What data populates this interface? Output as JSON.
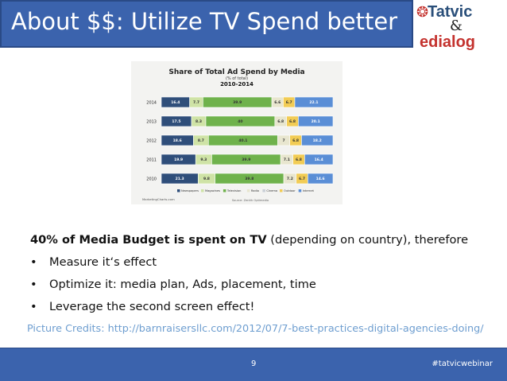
{
  "header": {
    "title": "About $$: Utilize TV Spend better"
  },
  "logo": {
    "line1": "Tatvic",
    "amp": "&",
    "line2": "edialog"
  },
  "chart_data": {
    "type": "bar",
    "orientation": "horizontal",
    "stacked": true,
    "title": "Share of Total Ad Spend by Media",
    "subtitle": "(% of total)",
    "subtitle2": "2010-2014",
    "categories": [
      "2014",
      "2013",
      "2012",
      "2011",
      "2010"
    ],
    "series": [
      {
        "name": "Newspapers",
        "color": "#2f4e7a",
        "values": [
          16.4,
          17.5,
          18.6,
          19.9,
          21.3
        ]
      },
      {
        "name": "Magazines",
        "color": "#cfe3a6",
        "values": [
          7.7,
          8.3,
          8.7,
          9.3,
          9.8
        ]
      },
      {
        "name": "Television",
        "color": "#6fb24c",
        "values": [
          39.9,
          40,
          40.1,
          39.9,
          39.8
        ]
      },
      {
        "name": "Radio",
        "color": "#e8e6cf",
        "values": [
          6.6,
          6.8,
          7,
          7.1,
          7.2
        ]
      },
      {
        "name": "Cinema",
        "color": "#c9cfd6",
        "values": [
          0,
          0,
          0,
          0,
          0
        ]
      },
      {
        "name": "Outdoor",
        "color": "#f2cc55",
        "values": [
          6.7,
          6.8,
          6.8,
          6.8,
          6.7
        ]
      },
      {
        "name": "Internet",
        "color": "#5a8ed6",
        "values": [
          22.1,
          20.1,
          18.2,
          16.4,
          14.6
        ]
      }
    ],
    "data_labels": [
      [
        "16.4",
        "7.7",
        "39.9",
        "6.6",
        "6.7",
        "22.1"
      ],
      [
        "17.5",
        "8.3",
        "40",
        "6.8",
        "6.8",
        "20.1"
      ],
      [
        "18.6",
        "8.7",
        "40.1",
        "7",
        "6.8",
        "18.2"
      ],
      [
        "19.9",
        "9.3",
        "39.9",
        "7.1",
        "6.8",
        "16.4"
      ],
      [
        "21.3",
        "9.8",
        "39.8",
        "7.2",
        "6.7",
        "14.6"
      ]
    ],
    "legend_position": "bottom",
    "source": "Source: Zenith Optimedia",
    "brand": "MarketingCharts.com"
  },
  "body": {
    "intro_bold": "40% of Media Budget is spent on TV",
    "intro_rest": " (depending on country), therefore",
    "bullets": [
      "Measure it‘s effect",
      "Optimize it: media plan, Ads, placement, time",
      "Leverage the second screen effect!"
    ],
    "credits": "Picture Credits: http://barnraisersllc.com/2012/07/7-best-practices-digital-agencies-doing/"
  },
  "footer": {
    "page_number": "9",
    "hashtag": "#tatvicwebinar"
  }
}
